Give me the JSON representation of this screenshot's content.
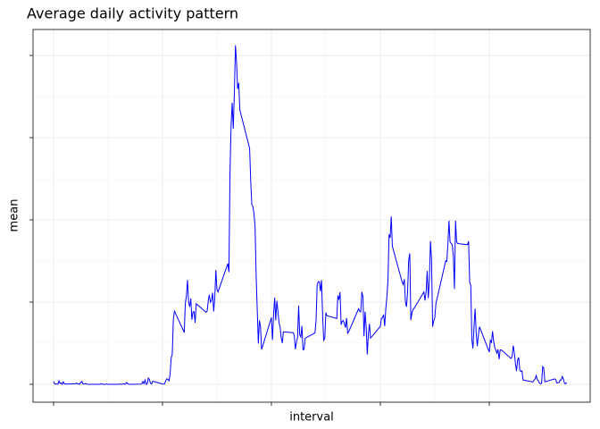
{
  "chart_data": {
    "type": "line",
    "title": "Average daily activity pattern",
    "x_label": "interval",
    "y_label": "mean",
    "color": "#0000ff",
    "grid": true,
    "x": [
      0,
      5,
      10,
      15,
      20,
      25,
      30,
      35,
      40,
      45,
      50,
      55,
      100,
      105,
      110,
      115,
      120,
      125,
      130,
      135,
      140,
      145,
      150,
      155,
      200,
      205,
      210,
      215,
      220,
      225,
      230,
      235,
      240,
      245,
      250,
      255,
      300,
      305,
      310,
      315,
      320,
      325,
      330,
      335,
      340,
      345,
      350,
      355,
      400,
      405,
      410,
      415,
      420,
      425,
      430,
      435,
      440,
      445,
      450,
      455,
      500,
      505,
      510,
      515,
      520,
      525,
      530,
      535,
      540,
      545,
      550,
      555,
      600,
      605,
      610,
      615,
      620,
      625,
      630,
      635,
      640,
      645,
      650,
      655,
      700,
      705,
      710,
      715,
      720,
      725,
      730,
      735,
      740,
      745,
      750,
      755,
      800,
      805,
      810,
      815,
      820,
      825,
      830,
      835,
      840,
      845,
      850,
      855,
      900,
      905,
      910,
      915,
      920,
      925,
      930,
      935,
      940,
      945,
      950,
      955,
      1000,
      1005,
      1010,
      1015,
      1020,
      1025,
      1030,
      1035,
      1040,
      1045,
      1050,
      1055,
      1100,
      1105,
      1110,
      1115,
      1120,
      1125,
      1130,
      1135,
      1140,
      1145,
      1150,
      1155,
      1200,
      1205,
      1210,
      1215,
      1220,
      1225,
      1230,
      1235,
      1240,
      1245,
      1250,
      1255,
      1300,
      1305,
      1310,
      1315,
      1320,
      1325,
      1330,
      1335,
      1340,
      1345,
      1350,
      1355,
      1400,
      1405,
      1410,
      1415,
      1420,
      1425,
      1430,
      1435,
      1440,
      1445,
      1450,
      1455,
      1500,
      1505,
      1510,
      1515,
      1520,
      1525,
      1530,
      1535,
      1540,
      1545,
      1550,
      1555,
      1600,
      1605,
      1610,
      1615,
      1620,
      1625,
      1630,
      1635,
      1640,
      1645,
      1650,
      1655,
      1700,
      1705,
      1710,
      1715,
      1720,
      1725,
      1730,
      1735,
      1740,
      1745,
      1750,
      1755,
      1800,
      1805,
      1810,
      1815,
      1820,
      1825,
      1830,
      1835,
      1840,
      1845,
      1850,
      1855,
      1900,
      1905,
      1910,
      1915,
      1920,
      1925,
      1930,
      1935,
      1940,
      1945,
      1950,
      1955,
      2000,
      2005,
      2010,
      2015,
      2020,
      2025,
      2030,
      2035,
      2040,
      2045,
      2050,
      2055,
      2100,
      2105,
      2110,
      2115,
      2120,
      2125,
      2130,
      2135,
      2140,
      2145,
      2150,
      2155,
      2200,
      2205,
      2210,
      2215,
      2220,
      2225,
      2230,
      2235,
      2240,
      2245,
      2250,
      2255,
      2300,
      2305,
      2310,
      2315,
      2320,
      2325,
      2330,
      2335,
      2340,
      2345,
      2350,
      2355
    ],
    "values": [
      1.7,
      0.3,
      0.1,
      0.2,
      0.1,
      2.1,
      0.5,
      0.9,
      0,
      1.5,
      0.3,
      0.1,
      0.3,
      0.7,
      0.2,
      0.3,
      0,
      1.1,
      1.8,
      0.2,
      0.2,
      0.4,
      0.3,
      0,
      0,
      0,
      0,
      0,
      0.4,
      0,
      0,
      0,
      0,
      0.2,
      0,
      0,
      0,
      0.2,
      0,
      0,
      0.3,
      0.1,
      0,
      1.1,
      0.4,
      0,
      0,
      0,
      0.1,
      0.2,
      1.7,
      0.4,
      2.6,
      0,
      0.2,
      3.8,
      2.9,
      0.6,
      0.2,
      1.9,
      0.2,
      0.1,
      0.2,
      2.3,
      3.3,
      3.0,
      2.1,
      6.1,
      16.0,
      18.3,
      39.5,
      44.5,
      31.5,
      49.3,
      53.8,
      63.5,
      50.0,
      47.1,
      52.2,
      39.3,
      44.0,
      44.2,
      37.4,
      49.0,
      43.8,
      44.4,
      50.5,
      54.5,
      49.9,
      51.0,
      55.7,
      44.3,
      52.3,
      69.5,
      57.8,
      56.2,
      73.4,
      68.2,
      129.4,
      157.5,
      171.2,
      155.4,
      177.3,
      206.2,
      195.9,
      179.6,
      183.4,
      167.0,
      143.5,
      124.0,
      109.1,
      108.1,
      103.7,
      96.0,
      66.2,
      45.2,
      24.8,
      38.8,
      35.0,
      21.1,
      40.6,
      27.0,
      42.4,
      52.7,
      38.9,
      50.8,
      44.3,
      37.4,
      34.7,
      28.3,
      25.1,
      31.9,
      31.4,
      29.7,
      21.3,
      25.5,
      28.4,
      47.8,
      30.0,
      28.7,
      35.5,
      21.0,
      21.3,
      28.0,
      31.3,
      38.8,
      60.8,
      62.3,
      62.4,
      56.5,
      63.4,
      41.7,
      26.8,
      27.9,
      43.6,
      41.7,
      40.0,
      54.0,
      51.4,
      56.1,
      36.2,
      38.4,
      38.8,
      36.9,
      34.4,
      40.3,
      31.1,
      32.0,
      45.9,
      44.5,
      44.0,
      56.2,
      53.5,
      29.2,
      44.1,
      35.0,
      18.1,
      30.5,
      36.8,
      28.1,
      35.2,
      40.1,
      40.6,
      42.4,
      35.4,
      45.9,
      53.2,
      63.0,
      91.2,
      89.1,
      102.1,
      84.0,
      62.1,
      60.7,
      63.9,
      50.2,
      47.1,
      56.2,
      75.5,
      79.6,
      39.0,
      43.6,
      45.4,
      46.2,
      56.2,
      51.0,
      56.1,
      68.9,
      52.3,
      63.4,
      87.1,
      76.0,
      35.0,
      38.6,
      40.5,
      49.0,
      75.1,
      74.7,
      85.0,
      99.5,
      86.6,
      85.6,
      84.9,
      77.8,
      58.0,
      99.5,
      86.6,
      85.6,
      84.9,
      87.0,
      62.0,
      60.3,
      27.0,
      21.8,
      35.3,
      46.0,
      30.8,
      23.2,
      30.0,
      35.0,
      19.6,
      26.7,
      25.5,
      32.3,
      26.0,
      22.5,
      20.7,
      18.9,
      21.2,
      15.2,
      20.9,
      20.9,
      15.7,
      17.2,
      23.5,
      19.0,
      12.5,
      8.0,
      14.7,
      16.3,
      8.7,
      7.8,
      8.1,
      2.6,
      1.4,
      2.4,
      3.1,
      5.3,
      2.9,
      2.2,
      0.7,
      0.4,
      0.5,
      10.7,
      9.8,
      1.5,
      3.3,
      2.8,
      0.8,
      1.0,
      1.0,
      2.6,
      2.6,
      4.7,
      3.3,
      0.6,
      0.2,
      1.1
    ],
    "xlim": [
      -94,
      2463
    ],
    "xticks": [
      0,
      500,
      1000,
      1500,
      2000
    ],
    "ylim": [
      -10.9,
      215.8
    ],
    "yticks": [
      0,
      50,
      100,
      150,
      200
    ]
  }
}
